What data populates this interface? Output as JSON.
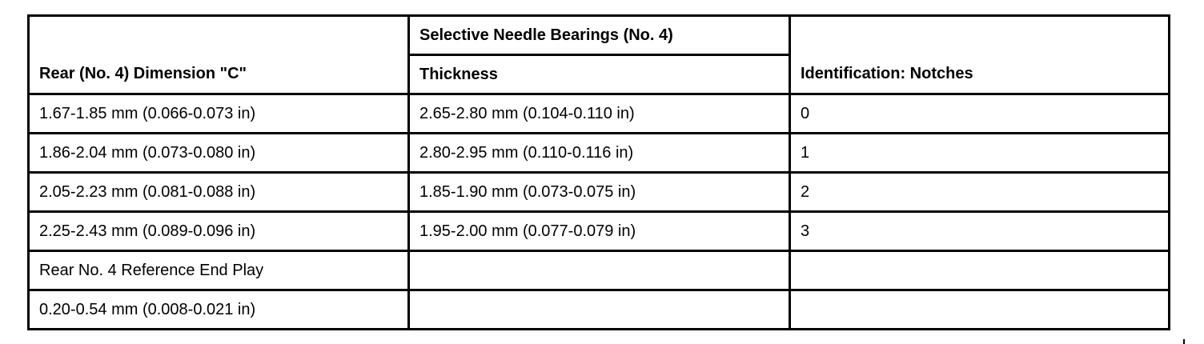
{
  "table": {
    "headers": {
      "col1": "Rear (No. 4) Dimension \"C\"",
      "group": "Selective Needle Bearings (No. 4)",
      "col2": "Thickness",
      "col3": "Identification: Notches"
    },
    "rows": [
      [
        "1.67-1.85 mm (0.066-0.073 in)",
        "2.65-2.80 mm (0.104-0.110 in)",
        "0"
      ],
      [
        "1.86-2.04 mm (0.073-0.080 in)",
        "2.80-2.95 mm (0.110-0.116 in)",
        "1"
      ],
      [
        "2.05-2.23 mm (0.081-0.088 in)",
        "1.85-1.90 mm (0.073-0.075 in)",
        "2"
      ],
      [
        "2.25-2.43 mm (0.089-0.096 in)",
        "1.95-2.00 mm (0.077-0.079 in)",
        "3"
      ],
      [
        "Rear No. 4 Reference End Play",
        "",
        ""
      ],
      [
        "0.20-0.54 mm (0.008-0.021 in)",
        "",
        ""
      ]
    ]
  }
}
